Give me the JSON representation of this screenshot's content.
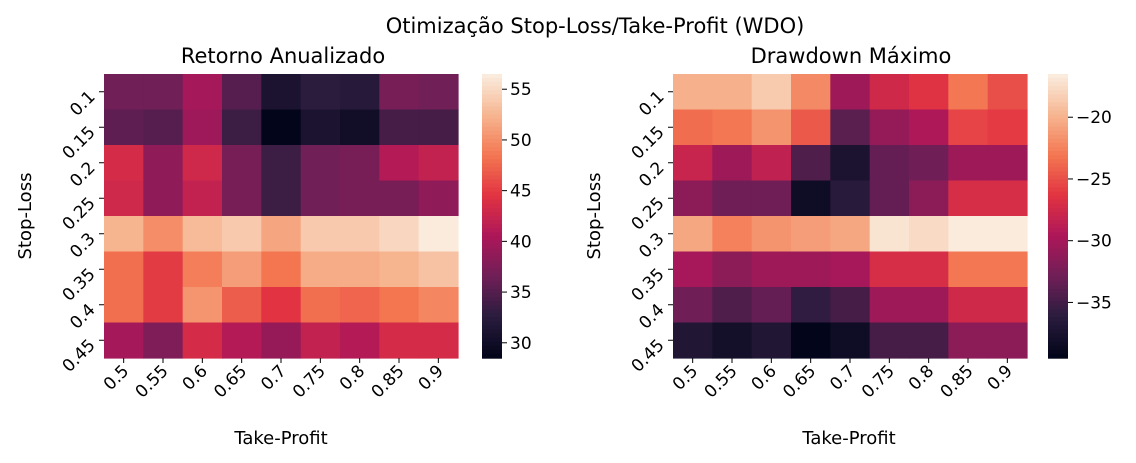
{
  "suptitle": "Otimização Stop-Loss/Take-Profit (WDO)",
  "colormap": [
    "#03051a",
    "#2b1c3e",
    "#701f57",
    "#ad1759",
    "#e13342",
    "#f37651",
    "#f6b48f",
    "#faebdd"
  ],
  "chart_data": [
    {
      "type": "heatmap",
      "title": "Retorno Anualizado",
      "xlabel": "Take-Profit",
      "ylabel": "Stop-Loss",
      "x": [
        "0.5",
        "0.55",
        "0.6",
        "0.65",
        "0.7",
        "0.75",
        "0.8",
        "0.85",
        "0.9"
      ],
      "y": [
        "0.1",
        "0.15",
        "0.2",
        "0.25",
        "0.3",
        "0.35",
        "0.4",
        "0.45"
      ],
      "vmin": 28.5,
      "vmax": 56.5,
      "colorbar_ticks": [
        "55",
        "50",
        "45",
        "40",
        "35",
        "30"
      ],
      "values": [
        [
          36.5,
          36.5,
          40.0,
          35.0,
          31.0,
          32.5,
          32.0,
          37.0,
          36.5
        ],
        [
          35.5,
          35.0,
          39.5,
          33.5,
          28.5,
          31.0,
          30.0,
          34.0,
          34.0
        ],
        [
          43.5,
          38.5,
          43.0,
          37.0,
          33.5,
          36.5,
          37.0,
          41.0,
          42.0
        ],
        [
          43.0,
          38.5,
          42.0,
          37.0,
          33.5,
          36.5,
          37.0,
          37.0,
          38.5
        ],
        [
          52.5,
          50.0,
          53.0,
          54.0,
          51.5,
          54.0,
          54.0,
          55.0,
          56.5
        ],
        [
          48.0,
          45.0,
          49.0,
          51.0,
          48.5,
          52.0,
          52.0,
          52.5,
          53.5
        ],
        [
          48.0,
          45.0,
          50.5,
          47.0,
          44.5,
          48.0,
          47.5,
          48.5,
          49.5
        ],
        [
          40.0,
          37.5,
          43.5,
          41.0,
          39.0,
          42.0,
          41.0,
          43.5,
          43.5
        ]
      ]
    },
    {
      "type": "heatmap",
      "title": "Drawdown Máximo",
      "xlabel": "Take-Profit",
      "ylabel": "Stop-Loss",
      "x": [
        "0.5",
        "0.55",
        "0.6",
        "0.65",
        "0.7",
        "0.75",
        "0.8",
        "0.85",
        "0.9"
      ],
      "y": [
        "0.1",
        "0.15",
        "0.2",
        "0.25",
        "0.3",
        "0.35",
        "0.4",
        "0.45"
      ],
      "vmin": -39.5,
      "vmax": -16.5,
      "colorbar_ticks": [
        "−20",
        "−25",
        "−30",
        "−35"
      ],
      "values": [
        [
          -20.0,
          -20.0,
          -18.5,
          -22.0,
          -30.5,
          -27.5,
          -26.5,
          -23.0,
          -25.0
        ],
        [
          -23.5,
          -23.0,
          -21.5,
          -24.5,
          -34.0,
          -31.0,
          -29.5,
          -25.5,
          -26.0
        ],
        [
          -28.0,
          -30.5,
          -28.5,
          -34.5,
          -37.5,
          -33.5,
          -33.0,
          -30.5,
          -30.5
        ],
        [
          -31.5,
          -33.0,
          -33.0,
          -38.5,
          -36.5,
          -33.5,
          -31.5,
          -27.0,
          -27.0
        ],
        [
          -20.5,
          -22.5,
          -21.5,
          -21.0,
          -20.5,
          -17.0,
          -17.5,
          -16.5,
          -16.5
        ],
        [
          -30.0,
          -31.5,
          -30.5,
          -30.5,
          -30.0,
          -27.0,
          -27.0,
          -23.0,
          -23.0
        ],
        [
          -33.0,
          -34.5,
          -33.5,
          -36.0,
          -35.0,
          -30.5,
          -30.5,
          -27.5,
          -27.5
        ],
        [
          -37.0,
          -38.0,
          -37.0,
          -39.5,
          -38.5,
          -35.0,
          -35.0,
          -31.5,
          -31.5
        ]
      ]
    }
  ]
}
